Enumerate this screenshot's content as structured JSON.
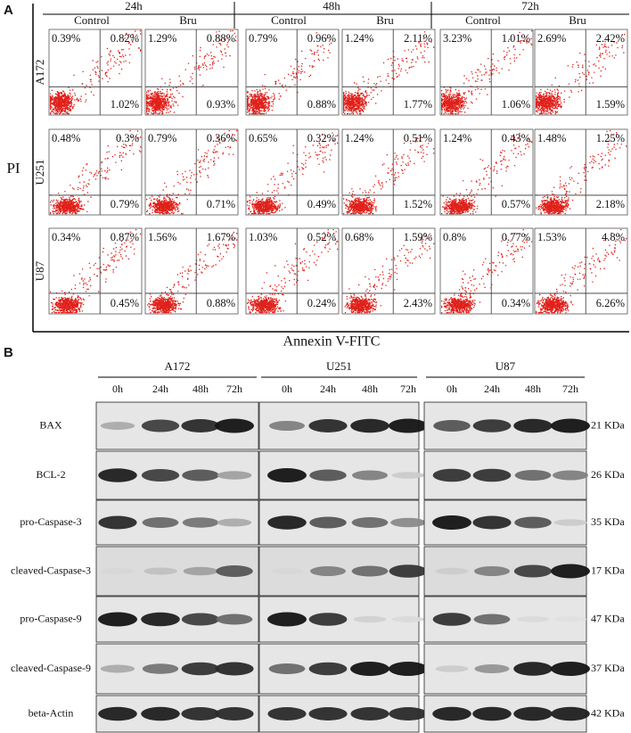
{
  "panel_a": {
    "label": "A",
    "times": [
      "24h",
      "48h",
      "72h"
    ],
    "conditions": [
      "Control",
      "Bru",
      "Control",
      "Bru",
      "Control",
      "Bru"
    ],
    "cell_lines": [
      "A172",
      "U251",
      "U87"
    ],
    "y_axis": "PI",
    "x_axis": "Annexin V-FITC",
    "quadrants": [
      [
        [
          "0.39%",
          "0.82%",
          "1.02%"
        ],
        [
          "1.29%",
          "0.88%",
          "0.93%"
        ],
        [
          "0.79%",
          "0.96%",
          "0.88%"
        ],
        [
          "1.24%",
          "2.11%",
          "1.77%"
        ],
        [
          "3.23%",
          "1.01%",
          "1.06%"
        ],
        [
          "2.69%",
          "2.42%",
          "1.59%"
        ]
      ],
      [
        [
          "0.48%",
          "0.3%",
          "0.79%"
        ],
        [
          "0.79%",
          "0.36%",
          "0.71%"
        ],
        [
          "0.65%",
          "0.32%",
          "0.49%"
        ],
        [
          "1.24%",
          "0.51%",
          "1.52%"
        ],
        [
          "1.24%",
          "0.43%",
          "0.57%"
        ],
        [
          "1.48%",
          "1.25%",
          "2.18%"
        ]
      ],
      [
        [
          "0.34%",
          "0.87%",
          "0.45%"
        ],
        [
          "1.56%",
          "1.67%",
          "0.88%"
        ],
        [
          "1.03%",
          "0.52%",
          "0.24%"
        ],
        [
          "0.68%",
          "1.59%",
          "2.43%"
        ],
        [
          "0.8%",
          "0.77%",
          "0.34%"
        ],
        [
          "1.53%",
          "4.8%",
          "6.26%"
        ]
      ]
    ]
  },
  "panel_b": {
    "label": "B",
    "groups": [
      {
        "name": "A172",
        "times": [
          "0h",
          "24h",
          "48h",
          "72h"
        ]
      },
      {
        "name": "U251",
        "times": [
          "0h",
          "24h",
          "48h",
          "72h"
        ]
      },
      {
        "name": "U87",
        "times": [
          "0h",
          "24h",
          "48h",
          "72h"
        ]
      }
    ],
    "proteins": [
      {
        "name": "BAX",
        "size": "21 KDa"
      },
      {
        "name": "BCL-2",
        "size": "26 KDa"
      },
      {
        "name": "pro-Caspase-3",
        "size": "35 KDa"
      },
      {
        "name": "cleaved-Caspase-3",
        "size": "17 KDa"
      },
      {
        "name": "pro-Caspase-9",
        "size": "47 KDa"
      },
      {
        "name": "cleaved-Caspase-9",
        "size": "37 KDa"
      },
      {
        "name": "beta-Actin",
        "size": "42 KDa"
      }
    ]
  }
}
